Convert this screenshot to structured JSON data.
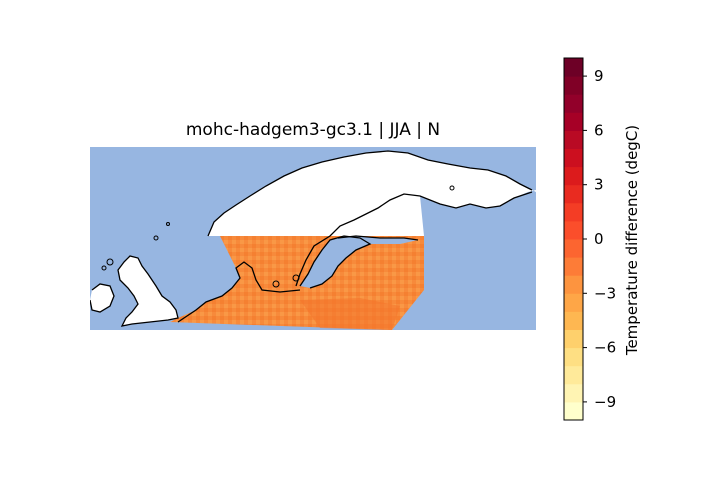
{
  "map": {
    "title": "mohc-hadgem3-gc3.1 | JJA | N",
    "ocean_color": "#97b6e1",
    "land_color": "#ffffff",
    "coast_color": "#000000",
    "data_color": "#f88d3c",
    "data_color_dark": "#f4722a"
  },
  "colorbar": {
    "label": "Temperature difference (degC)",
    "min": -10,
    "max": 10,
    "ticks": [
      {
        "value": 9,
        "label": "9"
      },
      {
        "value": 6,
        "label": "6"
      },
      {
        "value": 3,
        "label": "3"
      },
      {
        "value": 0,
        "label": "0"
      },
      {
        "value": -3,
        "label": "−3"
      },
      {
        "value": -6,
        "label": "−6"
      },
      {
        "value": -9,
        "label": "−9"
      }
    ],
    "colors": [
      "#ffffcc",
      "#fff4b3",
      "#ffea9a",
      "#fedf83",
      "#fed06c",
      "#feb751",
      "#fea647",
      "#fd943f",
      "#fd7c37",
      "#fc6530",
      "#fb4e2b",
      "#f43d25",
      "#e92b20",
      "#dc1b1c",
      "#cc0f1f",
      "#b90a24",
      "#a60026",
      "#92002a",
      "#800026",
      "#6d0026"
    ]
  }
}
